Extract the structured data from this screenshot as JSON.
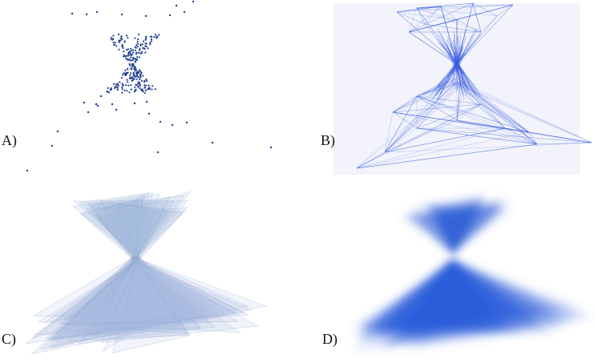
{
  "panels": [
    {
      "id": "A",
      "label": "A)",
      "style": "points"
    },
    {
      "id": "B",
      "label": "B)",
      "style": "wireframe"
    },
    {
      "id": "C",
      "label": "C)",
      "style": "translucent-triangles"
    },
    {
      "id": "D",
      "label": "D)",
      "style": "blurred-density"
    }
  ],
  "colors": {
    "point": "#1f3f8f",
    "edge": "#3a5ee0",
    "fill_light": "#a9bde0",
    "fill_dense": "#2b5bd7",
    "panel_b_background": "#f2f3fb"
  }
}
